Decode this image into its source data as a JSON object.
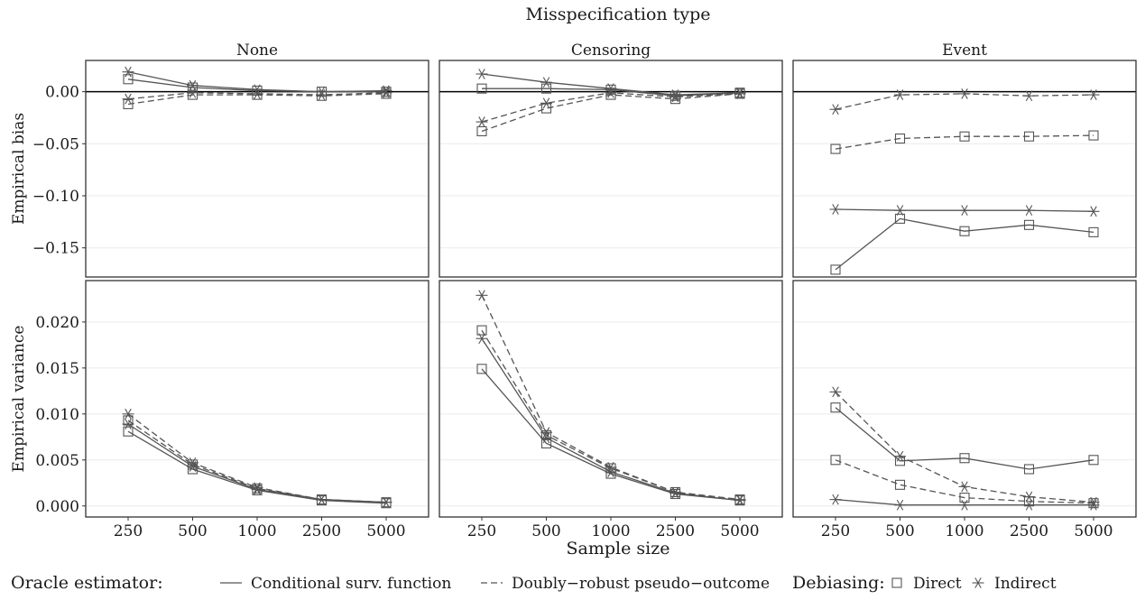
{
  "title": "Misspecification type",
  "xlabel": "Sample size",
  "legend": {
    "oracle_title": "Oracle estimator:",
    "oracle_items": [
      "Conditional surv. function",
      "Doubly−robust pseudo−outcome"
    ],
    "debias_title": "Debiasing:",
    "debias_items": [
      "Direct",
      "Indirect"
    ]
  },
  "colors": {
    "line": "#555555",
    "zero": "#000000",
    "grid": "#ebebeb",
    "panel_border": "#333333"
  },
  "chart_data": {
    "type": "line",
    "facet_columns": [
      "None",
      "Censoring",
      "Event"
    ],
    "facet_rows": [
      "Empirical bias",
      "Empirical variance"
    ],
    "x": [
      "250",
      "500",
      "1000",
      "2500",
      "5000"
    ],
    "rows": [
      {
        "ylabel": "Empirical bias",
        "ylim": [
          -0.178,
          0.03
        ],
        "yticks": [
          0.0,
          -0.05,
          -0.1,
          -0.15
        ],
        "ytick_labels": [
          "0.00",
          "−0.05",
          "−0.10",
          "−0.15"
        ],
        "zero_line": true,
        "panels": [
          {
            "facet": "None",
            "series": [
              {
                "oracle": "Conditional surv. function",
                "debiasing": "Direct",
                "values": [
                  0.012,
                  0.004,
                  0.001,
                  0.0,
                  0.0
                ]
              },
              {
                "oracle": "Conditional surv. function",
                "debiasing": "Indirect",
                "values": [
                  0.019,
                  0.006,
                  0.002,
                  0.0,
                  0.001
                ]
              },
              {
                "oracle": "Doubly−robust pseudo−outcome",
                "debiasing": "Direct",
                "values": [
                  -0.012,
                  -0.003,
                  -0.003,
                  -0.004,
                  -0.002
                ]
              },
              {
                "oracle": "Doubly−robust pseudo−outcome",
                "debiasing": "Indirect",
                "values": [
                  -0.007,
                  -0.001,
                  -0.002,
                  -0.003,
                  -0.001
                ]
              }
            ]
          },
          {
            "facet": "Censoring",
            "series": [
              {
                "oracle": "Conditional surv. function",
                "debiasing": "Direct",
                "values": [
                  0.003,
                  0.003,
                  0.002,
                  -0.004,
                  -0.001
                ]
              },
              {
                "oracle": "Conditional surv. function",
                "debiasing": "Indirect",
                "values": [
                  0.017,
                  0.009,
                  0.003,
                  -0.003,
                  -0.001
                ]
              },
              {
                "oracle": "Doubly−robust pseudo−outcome",
                "debiasing": "Direct",
                "values": [
                  -0.038,
                  -0.016,
                  -0.003,
                  -0.007,
                  -0.002
                ]
              },
              {
                "oracle": "Doubly−robust pseudo−outcome",
                "debiasing": "Indirect",
                "values": [
                  -0.029,
                  -0.011,
                  -0.001,
                  -0.005,
                  -0.002
                ]
              }
            ]
          },
          {
            "facet": "Event",
            "series": [
              {
                "oracle": "Conditional surv. function",
                "debiasing": "Direct",
                "values": [
                  -0.171,
                  -0.122,
                  -0.134,
                  -0.128,
                  -0.135
                ]
              },
              {
                "oracle": "Conditional surv. function",
                "debiasing": "Indirect",
                "values": [
                  -0.113,
                  -0.114,
                  -0.114,
                  -0.114,
                  -0.115
                ]
              },
              {
                "oracle": "Doubly−robust pseudo−outcome",
                "debiasing": "Direct",
                "values": [
                  -0.055,
                  -0.045,
                  -0.043,
                  -0.043,
                  -0.042
                ]
              },
              {
                "oracle": "Doubly−robust pseudo−outcome",
                "debiasing": "Indirect",
                "values": [
                  -0.017,
                  -0.003,
                  -0.002,
                  -0.004,
                  -0.003
                ]
              }
            ]
          }
        ]
      },
      {
        "ylabel": "Empirical variance",
        "ylim": [
          -0.0012,
          0.0245
        ],
        "yticks": [
          0.0,
          0.005,
          0.01,
          0.015,
          0.02
        ],
        "ytick_labels": [
          "0.000",
          "0.005",
          "0.010",
          "0.015",
          "0.020"
        ],
        "zero_line": false,
        "panels": [
          {
            "facet": "None",
            "series": [
              {
                "oracle": "Conditional surv. function",
                "debiasing": "Direct",
                "values": [
                  0.0081,
                  0.004,
                  0.0017,
                  0.0006,
                  0.0003
                ]
              },
              {
                "oracle": "Conditional surv. function",
                "debiasing": "Indirect",
                "values": [
                  0.0089,
                  0.0043,
                  0.0018,
                  0.0007,
                  0.0004
                ]
              },
              {
                "oracle": "Doubly−robust pseudo−outcome",
                "debiasing": "Direct",
                "values": [
                  0.0093,
                  0.0045,
                  0.0019,
                  0.0007,
                  0.0004
                ]
              },
              {
                "oracle": "Doubly−robust pseudo−outcome",
                "debiasing": "Indirect",
                "values": [
                  0.01,
                  0.0047,
                  0.002,
                  0.0007,
                  0.0004
                ]
              }
            ]
          },
          {
            "facet": "Censoring",
            "series": [
              {
                "oracle": "Conditional surv. function",
                "debiasing": "Direct",
                "values": [
                  0.0149,
                  0.0068,
                  0.0035,
                  0.0013,
                  0.0006
                ]
              },
              {
                "oracle": "Conditional surv. function",
                "debiasing": "Indirect",
                "values": [
                  0.0182,
                  0.0074,
                  0.0037,
                  0.0014,
                  0.0006
                ]
              },
              {
                "oracle": "Doubly−robust pseudo−outcome",
                "debiasing": "Direct",
                "values": [
                  0.0191,
                  0.0077,
                  0.0041,
                  0.0015,
                  0.0007
                ]
              },
              {
                "oracle": "Doubly−robust pseudo−outcome",
                "debiasing": "Indirect",
                "values": [
                  0.0229,
                  0.008,
                  0.0042,
                  0.0015,
                  0.0007
                ]
              }
            ]
          },
          {
            "facet": "Event",
            "series": [
              {
                "oracle": "Conditional surv. function",
                "debiasing": "Direct",
                "values": [
                  0.0107,
                  0.0049,
                  0.0052,
                  0.004,
                  0.005
                ]
              },
              {
                "oracle": "Conditional surv. function",
                "debiasing": "Indirect",
                "values": [
                  0.0007,
                  0.0001,
                  0.0001,
                  0.0001,
                  0.0001
                ]
              },
              {
                "oracle": "Doubly−robust pseudo−outcome",
                "debiasing": "Direct",
                "values": [
                  0.005,
                  0.0023,
                  0.0009,
                  0.0005,
                  0.0003
                ]
              },
              {
                "oracle": "Doubly−robust pseudo−outcome",
                "debiasing": "Indirect",
                "values": [
                  0.0124,
                  0.0054,
                  0.0021,
                  0.001,
                  0.0004
                ]
              }
            ]
          }
        ]
      }
    ]
  }
}
